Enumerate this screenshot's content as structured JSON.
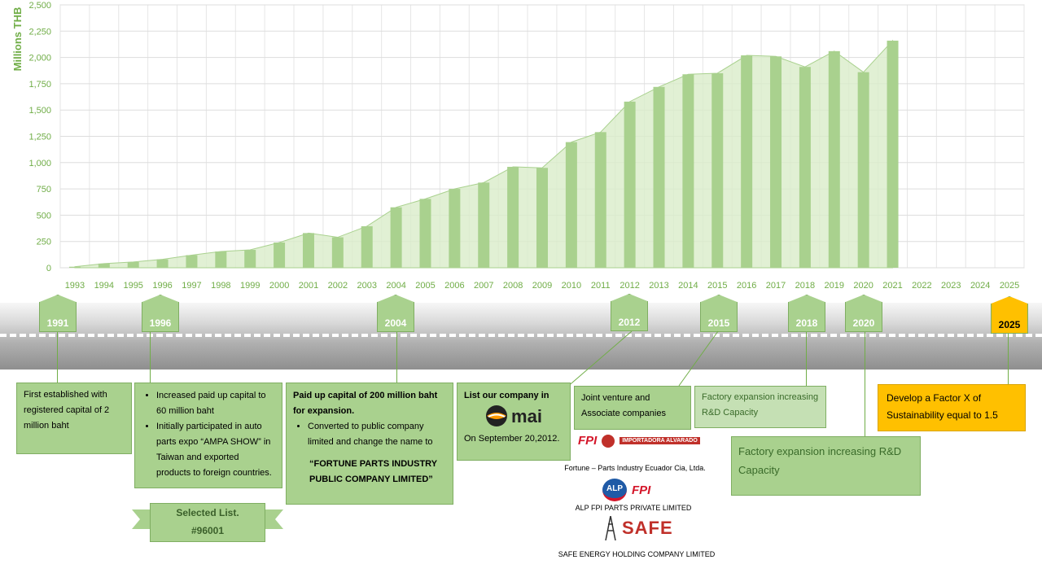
{
  "chart_data": {
    "type": "area+bar",
    "ylabel": "Millions THB",
    "ylim": [
      0,
      2500
    ],
    "yticks": [
      "0",
      "250",
      "500",
      "750",
      "1,000",
      "1,250",
      "1,500",
      "1,750",
      "2,000",
      "2,250",
      "2,500"
    ],
    "categories": [
      "1993",
      "1994",
      "1995",
      "1996",
      "1997",
      "1998",
      "1999",
      "2000",
      "2001",
      "2002",
      "2003",
      "2004",
      "2005",
      "2006",
      "2007",
      "2008",
      "2009",
      "2010",
      "2011",
      "2012",
      "2013",
      "2014",
      "2015",
      "2016",
      "2017",
      "2018",
      "2019",
      "2020",
      "2021",
      "2022",
      "2023",
      "2024",
      "2025"
    ],
    "series": [
      {
        "values": [
          10,
          40,
          55,
          80,
          120,
          155,
          170,
          240,
          330,
          290,
          395,
          575,
          655,
          750,
          810,
          960,
          950,
          1195,
          1290,
          1580,
          1720,
          1840,
          1850,
          2020,
          2010,
          1910,
          2060,
          1860,
          2160,
          null,
          null,
          null,
          null
        ]
      }
    ],
    "grid": true,
    "colors": {
      "bar": "#a9d18e",
      "area": "#d9ecc9",
      "grid": "#dddddd",
      "axis_text": "#70ad47"
    }
  },
  "milestones": [
    {
      "year": "1991"
    },
    {
      "year": "1996"
    },
    {
      "year": "2004"
    },
    {
      "year": "2012"
    },
    {
      "year": "2015"
    },
    {
      "year": "2018"
    },
    {
      "year": "2020"
    },
    {
      "year": "2025"
    }
  ],
  "m1991": {
    "text": "First established with registered capital of 2 million baht"
  },
  "m1996": {
    "items": [
      "Increased paid up capital to 60 million baht",
      "Initially participated in auto parts expo “AMPA SHOW” in Taiwan and exported products to foreign countries."
    ]
  },
  "m2004": {
    "heading": "Paid up capital of 200 million baht for expansion.",
    "items": [
      "Converted to public company limited and change the name to"
    ],
    "name": "“FORTUNE PARTS INDUSTRY PUBLIC COMPANY LIMITED”"
  },
  "m2012": {
    "heading": "List our company in",
    "logo": "mai",
    "date": "On September 20,2012."
  },
  "m2015": {
    "text": "Joint venture and Associate companies",
    "companies": [
      "Fortune – Parts Industry Ecuador Cia, Ltda.",
      "ALP FPI PARTS PRIVATE LIMITED",
      "SAFE ENERGY HOLDING COMPANY LIMITED"
    ],
    "logos": {
      "fpi": "FPI",
      "importadora": "IMPORTADORA ALVARADO",
      "alp": "ALP",
      "safe": "SAFE"
    }
  },
  "m2018": {
    "text": "Factory expansion increasing R&D Capacity"
  },
  "m2020": {
    "text": "Factory expansion increasing R&D Capacity"
  },
  "m2025": {
    "text": "Develop a Factor X of Sustainability equal to  1.5"
  },
  "ribbon": {
    "line1": "Selected List.",
    "line2": "#96001"
  }
}
